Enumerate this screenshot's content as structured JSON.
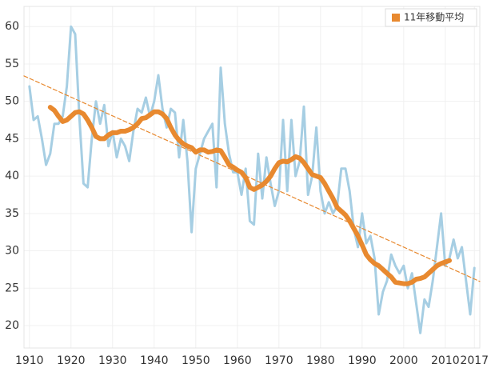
{
  "chart_data": {
    "type": "line",
    "x": [
      1910,
      1911,
      1912,
      1913,
      1914,
      1915,
      1916,
      1917,
      1918,
      1919,
      1920,
      1921,
      1922,
      1923,
      1924,
      1925,
      1926,
      1927,
      1928,
      1929,
      1930,
      1931,
      1932,
      1933,
      1934,
      1935,
      1936,
      1937,
      1938,
      1939,
      1940,
      1941,
      1942,
      1943,
      1944,
      1945,
      1946,
      1947,
      1948,
      1949,
      1950,
      1951,
      1952,
      1953,
      1954,
      1955,
      1956,
      1957,
      1958,
      1959,
      1960,
      1961,
      1962,
      1963,
      1964,
      1965,
      1966,
      1967,
      1968,
      1969,
      1970,
      1971,
      1972,
      1973,
      1974,
      1975,
      1976,
      1977,
      1978,
      1979,
      1980,
      1981,
      1982,
      1983,
      1984,
      1985,
      1986,
      1987,
      1988,
      1989,
      1990,
      1991,
      1992,
      1993,
      1994,
      1995,
      1996,
      1997,
      1998,
      1999,
      2000,
      2001,
      2002,
      2003,
      2004,
      2005,
      2006,
      2007,
      2008,
      2009,
      2010,
      2011,
      2012,
      2013,
      2014,
      2015,
      2016,
      2017
    ],
    "series": [
      {
        "color": "#a6cee3",
        "width": 3,
        "values": [
          52,
          47.5,
          48,
          45,
          41.5,
          43,
          47,
          47,
          48,
          52,
          60,
          59,
          48,
          39,
          38.5,
          45,
          50,
          47,
          49.5,
          44,
          46,
          42.5,
          45,
          44,
          42,
          46,
          49,
          48.5,
          50.5,
          48,
          50,
          53.5,
          49,
          46.5,
          49,
          48.5,
          42.5,
          47.5,
          42,
          32.5,
          41,
          43,
          45,
          46,
          47,
          38.5,
          54.5,
          47,
          43,
          40.5,
          40.5,
          37.5,
          41,
          34,
          33.5,
          43,
          37,
          42.5,
          39,
          36,
          38,
          47.5,
          38,
          47.5,
          40,
          42,
          49.3,
          37.5,
          40,
          46.5,
          38,
          35,
          36.5,
          35,
          36,
          41,
          41,
          38,
          33,
          30.5,
          35,
          31,
          32,
          29,
          21.5,
          24.5,
          26,
          29.5,
          28,
          27,
          28,
          25,
          27,
          23,
          19,
          23.5,
          22.5,
          26,
          30.5,
          35,
          28,
          29,
          31.5,
          29,
          30.5,
          26,
          21.5,
          27.7
        ]
      },
      {
        "name": "11年移動平均",
        "color": "#e8892f",
        "width": 6,
        "values": [
          null,
          null,
          null,
          null,
          null,
          49.2,
          48.8,
          48,
          47.3,
          47.5,
          48,
          48.5,
          48.6,
          48.3,
          47.5,
          46.5,
          45.3,
          45,
          45,
          45.5,
          45.8,
          45.8,
          46,
          46,
          46.2,
          46.5,
          47,
          47.7,
          47.8,
          48.2,
          48.6,
          48.6,
          48.3,
          47.7,
          46.5,
          45.5,
          44.8,
          44.3,
          44,
          43.8,
          43.2,
          43.5,
          43.5,
          43.2,
          43.3,
          43.5,
          43.4,
          42.5,
          41.5,
          41.2,
          40.8,
          40.5,
          39.8,
          38.5,
          38.2,
          38.5,
          38.8,
          39.3,
          40,
          41,
          41.8,
          42,
          41.9,
          42.2,
          42.6,
          42.4,
          41.8,
          41,
          40.2,
          40,
          39.8,
          39,
          38,
          37,
          35.8,
          35.3,
          34.8,
          34,
          33,
          32,
          30.8,
          29.5,
          28.8,
          28.3,
          28,
          27.5,
          27,
          26.5,
          25.8,
          25.7,
          25.6,
          25.6,
          25.8,
          26.2,
          26.3,
          26.5,
          27,
          27.5,
          28,
          28.3,
          28.5,
          28.7,
          null,
          null,
          null,
          null,
          null,
          null
        ]
      }
    ],
    "trendline": {
      "x": [
        1908.7,
        2018.3
      ],
      "values": [
        53.4,
        25.9
      ],
      "color": "#e8892f"
    },
    "xlim": [
      1908.7,
      2018.3
    ],
    "xticks": [
      1910,
      1920,
      1930,
      1940,
      1950,
      1960,
      1970,
      1980,
      1990,
      2000,
      2010,
      2017
    ],
    "ylim": [
      17,
      62.7
    ],
    "yticks": [
      20,
      25,
      30,
      35,
      40,
      45,
      50,
      55,
      60
    ],
    "grid": true
  }
}
